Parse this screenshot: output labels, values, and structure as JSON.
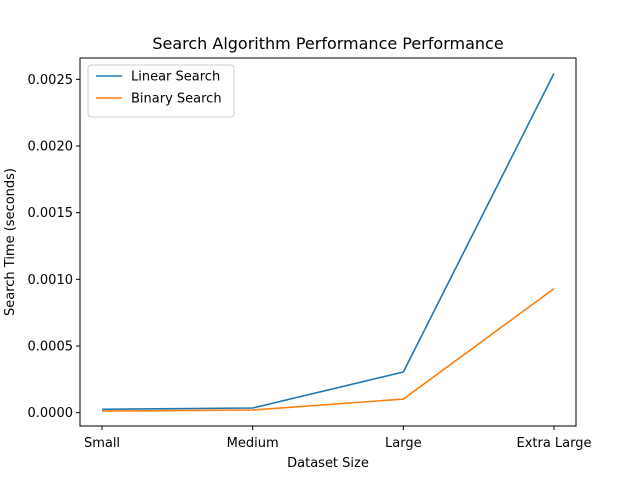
{
  "chart_data": {
    "type": "line",
    "title": "Search Algorithm Performance Performance",
    "xlabel": "Dataset Size",
    "ylabel": "Search Time (seconds)",
    "categories": [
      "Small",
      "Medium",
      "Large",
      "Extra Large"
    ],
    "ylim": [
      -0.0001,
      0.00266
    ],
    "yticks": [
      0.0,
      0.0005,
      0.001,
      0.0015,
      0.002,
      0.0025
    ],
    "ytick_labels": [
      "0.0000",
      "0.0005",
      "0.0010",
      "0.0015",
      "0.0020",
      "0.0025"
    ],
    "grid": false,
    "legend_position": "upper left",
    "series": [
      {
        "name": "Linear Search",
        "color": "#1f77b4",
        "values": [
          2.5e-05,
          3.5e-05,
          0.000305,
          0.002545
        ]
      },
      {
        "name": "Binary Search",
        "color": "#ff7f0e",
        "values": [
          1.2e-05,
          2e-05,
          0.000102,
          0.00093
        ]
      }
    ]
  }
}
